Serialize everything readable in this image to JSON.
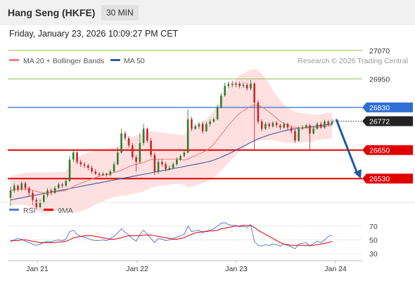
{
  "header": {
    "title": "Hang Seng (HKFE)",
    "timeframe": "30 MIN"
  },
  "timestamp": "Friday, January 23, 2026 10:09:27 PM CET",
  "legend": {
    "ma20": "MA 20 + Bollinger Bands",
    "ma50": "MA 50",
    "credit": "Research © 2026 Trading Central"
  },
  "rsi_legend": {
    "rsi": "RSI",
    "ma": "9MA"
  },
  "colors": {
    "up": "#2e7d32",
    "down": "#c62828",
    "ma20": "#f08080",
    "ma50": "#3b5b9b",
    "resistance": "#8bc34a",
    "pivot": "#2f6fd6",
    "support": "#e00000",
    "arrow": "#1f5a9e",
    "band": "#ffd6d6"
  },
  "chart_data": [
    {
      "type": "candlestick",
      "x_ticks": [
        "Jan 21",
        "Jan 22",
        "Jan 23",
        "Jan 24"
      ],
      "ylim": [
        26430,
        27090
      ],
      "levels": [
        {
          "value": 27070,
          "label": "27070",
          "kind": "resistance"
        },
        {
          "value": 26950,
          "label": "26950",
          "kind": "resistance"
        },
        {
          "value": 26830,
          "label": "26830",
          "kind": "pivot"
        },
        {
          "value": 26650,
          "label": "26650",
          "kind": "support"
        },
        {
          "value": 26530,
          "label": "26530",
          "kind": "support"
        }
      ],
      "last_price": {
        "value": 26772,
        "label": "26772"
      },
      "candles": [
        [
          26450,
          26480,
          26415,
          26495
        ],
        [
          26480,
          26500,
          26470,
          26510
        ],
        [
          26500,
          26485,
          26475,
          26505
        ],
        [
          26485,
          26510,
          26478,
          26520
        ],
        [
          26510,
          26490,
          26480,
          26518
        ],
        [
          26490,
          26470,
          26455,
          26498
        ],
        [
          26470,
          26440,
          26420,
          26480
        ],
        [
          26440,
          26410,
          26400,
          26448
        ],
        [
          26410,
          26430,
          26405,
          26442
        ],
        [
          26430,
          26460,
          26425,
          26470
        ],
        [
          26460,
          26480,
          26450,
          26490
        ],
        [
          26480,
          26470,
          26460,
          26488
        ],
        [
          26470,
          26490,
          26465,
          26498
        ],
        [
          26490,
          26505,
          26485,
          26512
        ],
        [
          26505,
          26500,
          26490,
          26512
        ],
        [
          26500,
          26520,
          26495,
          26528
        ],
        [
          26520,
          26610,
          26515,
          26625
        ],
        [
          26610,
          26640,
          26600,
          26650
        ],
        [
          26640,
          26600,
          26590,
          26645
        ],
        [
          26600,
          26590,
          26580,
          26610
        ],
        [
          26590,
          26585,
          26575,
          26600
        ],
        [
          26585,
          26575,
          26565,
          26592
        ],
        [
          26575,
          26560,
          26550,
          26585
        ],
        [
          26560,
          26550,
          26545,
          26570
        ],
        [
          26550,
          26545,
          26538,
          26558
        ],
        [
          26545,
          26550,
          26540,
          26558
        ],
        [
          26550,
          26545,
          26538,
          26555
        ],
        [
          26545,
          26560,
          26540,
          26568
        ],
        [
          26560,
          26590,
          26555,
          26600
        ],
        [
          26590,
          26640,
          26585,
          26660
        ],
        [
          26640,
          26720,
          26635,
          26740
        ],
        [
          26720,
          26700,
          26690,
          26730
        ],
        [
          26700,
          26670,
          26660,
          26708
        ],
        [
          26670,
          26620,
          26610,
          26680
        ],
        [
          26620,
          26600,
          26560,
          26630
        ],
        [
          26600,
          26680,
          26595,
          26720
        ],
        [
          26680,
          26740,
          26670,
          26760
        ],
        [
          26740,
          26690,
          26680,
          26745
        ],
        [
          26690,
          26630,
          26620,
          26700
        ],
        [
          26630,
          26560,
          26545,
          26640
        ],
        [
          26560,
          26600,
          26550,
          26610
        ],
        [
          26600,
          26590,
          26580,
          26610
        ],
        [
          26590,
          26570,
          26560,
          26600
        ],
        [
          26570,
          26575,
          26565,
          26585
        ],
        [
          26575,
          26590,
          26570,
          26598
        ],
        [
          26590,
          26610,
          26585,
          26620
        ],
        [
          26610,
          26625,
          26605,
          26632
        ],
        [
          26625,
          26640,
          26620,
          26650
        ],
        [
          26640,
          26780,
          26635,
          26820
        ],
        [
          26780,
          26740,
          26730,
          26790
        ],
        [
          26740,
          26750,
          26735,
          26760
        ],
        [
          26750,
          26760,
          26740,
          26768
        ],
        [
          26760,
          26730,
          26720,
          26770
        ],
        [
          26730,
          26760,
          26725,
          26770
        ],
        [
          26760,
          26770,
          26750,
          26780
        ],
        [
          26770,
          26780,
          26765,
          26788
        ],
        [
          26780,
          26830,
          26775,
          26840
        ],
        [
          26830,
          26880,
          26825,
          26890
        ],
        [
          26880,
          26920,
          26875,
          26935
        ],
        [
          26920,
          26930,
          26910,
          26940
        ],
        [
          26930,
          26925,
          26915,
          26942
        ],
        [
          26925,
          26930,
          26915,
          26938
        ],
        [
          26930,
          26920,
          26910,
          26938
        ],
        [
          26920,
          26925,
          26912,
          26935
        ],
        [
          26925,
          26910,
          26900,
          26932
        ],
        [
          26910,
          26930,
          26900,
          26945
        ],
        [
          26930,
          26850,
          26650,
          26935
        ],
        [
          26850,
          26770,
          26760,
          26860
        ],
        [
          26770,
          26740,
          26730,
          26780
        ],
        [
          26740,
          26760,
          26735,
          26770
        ],
        [
          26760,
          26750,
          26740,
          26768
        ],
        [
          26750,
          26765,
          26745,
          26772
        ],
        [
          26765,
          26755,
          26745,
          26772
        ],
        [
          26755,
          26745,
          26735,
          26762
        ],
        [
          26745,
          26760,
          26740,
          26768
        ],
        [
          26760,
          26745,
          26735,
          26765
        ],
        [
          26745,
          26730,
          26720,
          26752
        ],
        [
          26730,
          26690,
          26680,
          26740
        ],
        [
          26690,
          26740,
          26685,
          26750
        ],
        [
          26740,
          26745,
          26735,
          26755
        ],
        [
          26745,
          26755,
          26740,
          26762
        ],
        [
          26755,
          26720,
          26650,
          26760
        ],
        [
          26720,
          26740,
          26715,
          26750
        ],
        [
          26740,
          26760,
          26735,
          26768
        ],
        [
          26760,
          26745,
          26740,
          26770
        ],
        [
          26745,
          26770,
          26740,
          26778
        ],
        [
          26770,
          26760,
          26750,
          26778
        ],
        [
          26760,
          26772,
          26755,
          26780
        ]
      ],
      "ma20": [
        26480,
        26482,
        26484,
        26486,
        26486,
        26484,
        26480,
        26476,
        26472,
        26470,
        26470,
        26472,
        26474,
        26476,
        26478,
        26480,
        26488,
        26496,
        26504,
        26510,
        26516,
        26522,
        26528,
        26534,
        26540,
        26544,
        26548,
        26552,
        26556,
        26560,
        26566,
        26572,
        26580,
        26586,
        26590,
        26594,
        26598,
        26604,
        26610,
        26612,
        26612,
        26612,
        26612,
        26612,
        26612,
        26612,
        26610,
        26608,
        26612,
        26620,
        26626,
        26634,
        26640,
        26648,
        26660,
        26675,
        26695,
        26715,
        26735,
        26755,
        26772,
        26790,
        26805,
        26815,
        26825,
        26835,
        26840,
        26838,
        26832,
        26822,
        26810,
        26798,
        26784,
        26772,
        26762,
        26755,
        26750,
        26746,
        26744,
        26744,
        26744,
        26744,
        26744,
        26746,
        26748,
        26750,
        26752,
        26754
      ],
      "ma50": [
        26440,
        26443,
        26446,
        26449,
        26452,
        26455,
        26458,
        26461,
        26464,
        26467,
        26470,
        26473,
        26476,
        26479,
        26482,
        26485,
        26488,
        26491,
        26494,
        26497,
        26500,
        26503,
        26506,
        26509,
        26512,
        26515,
        26518,
        26521,
        26524,
        26527,
        26530,
        26533,
        26536,
        26539,
        26542,
        26545,
        26548,
        26551,
        26554,
        26557,
        26560,
        26563,
        26566,
        26569,
        26572,
        26575,
        26578,
        26581,
        26584,
        26587,
        26590,
        26593,
        26596,
        26599,
        26603,
        26608,
        26614,
        26620,
        26627,
        26634,
        26642,
        26650,
        26658,
        26666,
        26674,
        26682,
        26690,
        26697,
        26703,
        26709,
        26714,
        26719,
        26723,
        26727,
        26731,
        26734,
        26737,
        26740,
        26742,
        26744,
        26746,
        26748,
        26750,
        26752,
        26754,
        26756,
        26758,
        26760
      ],
      "bb_half_width": [
        60,
        62,
        64,
        66,
        68,
        72,
        76,
        80,
        84,
        86,
        86,
        84,
        82,
        80,
        80,
        80,
        100,
        110,
        115,
        118,
        118,
        118,
        116,
        114,
        112,
        110,
        108,
        106,
        104,
        104,
        108,
        114,
        118,
        120,
        122,
        122,
        122,
        120,
        118,
        116,
        114,
        112,
        110,
        108,
        106,
        104,
        104,
        104,
        120,
        124,
        126,
        128,
        130,
        132,
        136,
        140,
        146,
        152,
        156,
        158,
        160,
        160,
        160,
        158,
        156,
        154,
        152,
        148,
        140,
        130,
        118,
        106,
        96,
        88,
        80,
        74,
        70,
        66,
        64,
        62,
        60,
        58,
        56,
        54,
        54,
        54,
        54,
        54
      ],
      "projection": {
        "from": 26780,
        "to": 26530
      }
    },
    {
      "type": "line",
      "title": "RSI",
      "ylim": [
        25,
        80
      ],
      "y_ticks": [
        70,
        50,
        30
      ],
      "series": [
        {
          "name": "RSI",
          "values": [
            47,
            50,
            52,
            51,
            48,
            46,
            44,
            42,
            44,
            46,
            48,
            47,
            49,
            50,
            49,
            51,
            62,
            64,
            58,
            55,
            54,
            52,
            50,
            49,
            49,
            50,
            49,
            52,
            55,
            60,
            66,
            61,
            57,
            52,
            48,
            58,
            64,
            58,
            52,
            46,
            52,
            51,
            49,
            50,
            52,
            54,
            56,
            58,
            70,
            62,
            63,
            64,
            60,
            63,
            64,
            66,
            70,
            74,
            75,
            72,
            71,
            71,
            69,
            70,
            68,
            72,
            48,
            42,
            41,
            43,
            42,
            44,
            43,
            41,
            44,
            42,
            40,
            37,
            44,
            45,
            46,
            41,
            45,
            48,
            46,
            50,
            55,
            57
          ]
        },
        {
          "name": "9MA",
          "values": [
            49,
            49,
            49,
            50,
            50,
            49,
            48,
            47,
            46,
            46,
            46,
            46,
            46,
            47,
            47,
            48,
            50,
            53,
            54,
            55,
            56,
            56,
            56,
            55,
            54,
            53,
            52,
            51,
            51,
            52,
            53,
            55,
            56,
            56,
            56,
            56,
            57,
            57,
            57,
            56,
            55,
            54,
            53,
            52,
            51,
            51,
            52,
            53,
            56,
            58,
            60,
            61,
            62,
            62,
            63,
            63,
            64,
            66,
            67,
            68,
            69,
            70,
            70,
            71,
            71,
            71,
            68,
            64,
            61,
            58,
            55,
            52,
            49,
            46,
            44,
            43,
            42,
            42,
            42,
            42,
            42,
            42,
            42,
            43,
            44,
            45,
            46,
            48
          ]
        }
      ]
    }
  ]
}
